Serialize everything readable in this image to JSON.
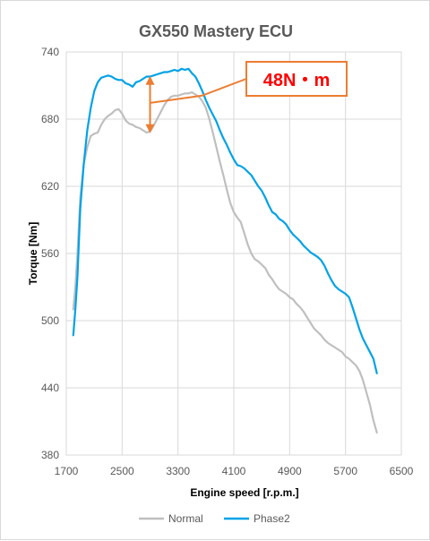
{
  "chart_data": {
    "type": "line",
    "title": "GX550 Mastery ECU",
    "xlabel": "Engine speed [r.p.m.]",
    "ylabel": "Torque [Nm]",
    "xlim": [
      1700,
      6500
    ],
    "ylim": [
      380,
      740
    ],
    "xticks": [
      1700,
      2500,
      3300,
      4100,
      4900,
      5700,
      6500
    ],
    "yticks": [
      380,
      440,
      500,
      560,
      620,
      680,
      740
    ],
    "grid": true,
    "legend_position": "bottom-center",
    "annotation": {
      "text": "48N・m",
      "x": 2900,
      "y_low": 669,
      "y_high": 717,
      "color_box": "#ED7D31",
      "color_text": "#FF0000"
    },
    "series": [
      {
        "name": "Normal",
        "color": "#BFBFBF",
        "points": [
          [
            1800,
            510
          ],
          [
            1830,
            530
          ],
          [
            1860,
            560
          ],
          [
            1900,
            610
          ],
          [
            1950,
            640
          ],
          [
            2000,
            655
          ],
          [
            2050,
            665
          ],
          [
            2100,
            667
          ],
          [
            2150,
            668
          ],
          [
            2200,
            675
          ],
          [
            2250,
            680
          ],
          [
            2300,
            683
          ],
          [
            2350,
            685
          ],
          [
            2400,
            688
          ],
          [
            2450,
            689
          ],
          [
            2500,
            685
          ],
          [
            2550,
            679
          ],
          [
            2600,
            676
          ],
          [
            2650,
            675
          ],
          [
            2700,
            673
          ],
          [
            2750,
            672
          ],
          [
            2800,
            670
          ],
          [
            2850,
            668
          ],
          [
            2900,
            669
          ],
          [
            2950,
            674
          ],
          [
            3000,
            680
          ],
          [
            3050,
            686
          ],
          [
            3100,
            692
          ],
          [
            3150,
            697
          ],
          [
            3200,
            700
          ],
          [
            3250,
            701
          ],
          [
            3300,
            701
          ],
          [
            3350,
            702
          ],
          [
            3400,
            703
          ],
          [
            3450,
            703
          ],
          [
            3500,
            704
          ],
          [
            3550,
            702
          ],
          [
            3600,
            700
          ],
          [
            3650,
            696
          ],
          [
            3700,
            690
          ],
          [
            3750,
            680
          ],
          [
            3800,
            668
          ],
          [
            3850,
            655
          ],
          [
            3900,
            642
          ],
          [
            3950,
            630
          ],
          [
            4000,
            617
          ],
          [
            4050,
            605
          ],
          [
            4100,
            597
          ],
          [
            4150,
            592
          ],
          [
            4200,
            588
          ],
          [
            4250,
            578
          ],
          [
            4300,
            568
          ],
          [
            4350,
            560
          ],
          [
            4400,
            555
          ],
          [
            4450,
            553
          ],
          [
            4500,
            550
          ],
          [
            4550,
            547
          ],
          [
            4600,
            541
          ],
          [
            4650,
            537
          ],
          [
            4700,
            532
          ],
          [
            4750,
            528
          ],
          [
            4800,
            526
          ],
          [
            4850,
            524
          ],
          [
            4900,
            521
          ],
          [
            4950,
            519
          ],
          [
            5000,
            515
          ],
          [
            5050,
            512
          ],
          [
            5100,
            508
          ],
          [
            5150,
            503
          ],
          [
            5200,
            498
          ],
          [
            5250,
            493
          ],
          [
            5300,
            490
          ],
          [
            5350,
            487
          ],
          [
            5400,
            483
          ],
          [
            5450,
            480
          ],
          [
            5500,
            478
          ],
          [
            5550,
            476
          ],
          [
            5600,
            474
          ],
          [
            5650,
            472
          ],
          [
            5700,
            468
          ],
          [
            5750,
            466
          ],
          [
            5800,
            463
          ],
          [
            5850,
            460
          ],
          [
            5900,
            455
          ],
          [
            5950,
            447
          ],
          [
            6000,
            436
          ],
          [
            6050,
            425
          ],
          [
            6100,
            411
          ],
          [
            6150,
            400
          ]
        ]
      },
      {
        "name": "Phase2",
        "color": "#00A2E8",
        "points": [
          [
            1800,
            487
          ],
          [
            1830,
            510
          ],
          [
            1860,
            540
          ],
          [
            1900,
            600
          ],
          [
            1950,
            640
          ],
          [
            2000,
            670
          ],
          [
            2050,
            690
          ],
          [
            2100,
            705
          ],
          [
            2150,
            713
          ],
          [
            2200,
            717
          ],
          [
            2250,
            718
          ],
          [
            2300,
            719
          ],
          [
            2350,
            718
          ],
          [
            2400,
            716
          ],
          [
            2450,
            715
          ],
          [
            2500,
            715
          ],
          [
            2550,
            712
          ],
          [
            2600,
            711
          ],
          [
            2650,
            709
          ],
          [
            2700,
            713
          ],
          [
            2750,
            714
          ],
          [
            2800,
            716
          ],
          [
            2850,
            718
          ],
          [
            2900,
            718
          ],
          [
            2950,
            719
          ],
          [
            3000,
            720
          ],
          [
            3050,
            721
          ],
          [
            3100,
            722
          ],
          [
            3150,
            722
          ],
          [
            3200,
            723
          ],
          [
            3250,
            724
          ],
          [
            3300,
            723
          ],
          [
            3350,
            725
          ],
          [
            3400,
            724
          ],
          [
            3450,
            725
          ],
          [
            3500,
            721
          ],
          [
            3550,
            718
          ],
          [
            3600,
            712
          ],
          [
            3650,
            705
          ],
          [
            3700,
            697
          ],
          [
            3750,
            690
          ],
          [
            3800,
            684
          ],
          [
            3850,
            678
          ],
          [
            3900,
            670
          ],
          [
            3950,
            663
          ],
          [
            4000,
            657
          ],
          [
            4050,
            650
          ],
          [
            4100,
            644
          ],
          [
            4150,
            639
          ],
          [
            4200,
            638
          ],
          [
            4250,
            636
          ],
          [
            4300,
            633
          ],
          [
            4350,
            630
          ],
          [
            4400,
            625
          ],
          [
            4450,
            620
          ],
          [
            4500,
            616
          ],
          [
            4550,
            610
          ],
          [
            4600,
            603
          ],
          [
            4650,
            597
          ],
          [
            4700,
            595
          ],
          [
            4750,
            591
          ],
          [
            4800,
            589
          ],
          [
            4850,
            586
          ],
          [
            4900,
            581
          ],
          [
            4950,
            577
          ],
          [
            5000,
            574
          ],
          [
            5050,
            571
          ],
          [
            5100,
            567
          ],
          [
            5150,
            564
          ],
          [
            5200,
            561
          ],
          [
            5250,
            559
          ],
          [
            5300,
            557
          ],
          [
            5350,
            554
          ],
          [
            5400,
            549
          ],
          [
            5450,
            542
          ],
          [
            5500,
            536
          ],
          [
            5550,
            531
          ],
          [
            5600,
            528
          ],
          [
            5650,
            526
          ],
          [
            5700,
            524
          ],
          [
            5750,
            521
          ],
          [
            5800,
            512
          ],
          [
            5850,
            502
          ],
          [
            5900,
            492
          ],
          [
            5950,
            484
          ],
          [
            6000,
            478
          ],
          [
            6050,
            472
          ],
          [
            6100,
            466
          ],
          [
            6150,
            453
          ]
        ]
      }
    ]
  }
}
